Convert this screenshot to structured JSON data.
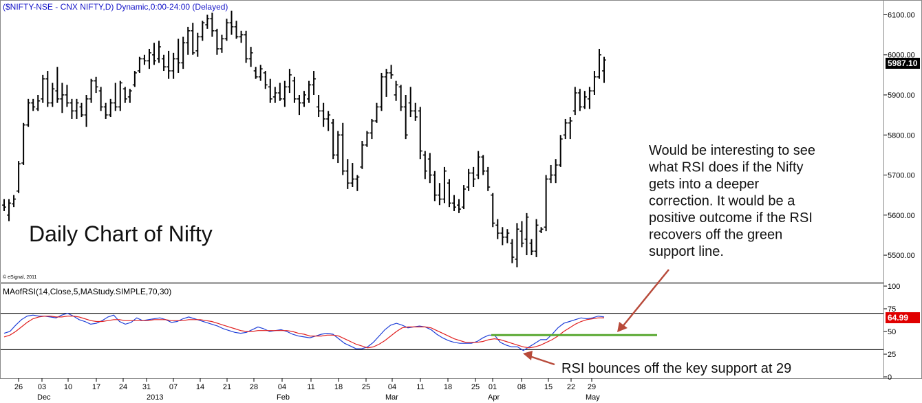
{
  "header": {
    "symbol_title": "($NIFTY-NSE - CNX NIFTY,D) Dynamic,0:00-24:00 (Delayed)",
    "chart_heading": "Daily Chart of Nifty",
    "copyright": "© eSignal, 2011"
  },
  "annotations": {
    "rsi_note_lines": [
      "Would be interesting to see",
      "what RSI does if the Nifty",
      "gets into a deeper",
      "correction. It would be a",
      "positive outcome if the RSI",
      "recovers off the green",
      "support line."
    ],
    "bounce_note": "RSI bounces off the key support at 29"
  },
  "colors": {
    "price_bars": "#000000",
    "rsi_line": "#1f3fd8",
    "ma_line": "#e02020",
    "support_line": "#5aa832",
    "arrow": "#b84a3a",
    "header_text": "#1414c8",
    "last_rsi_badge": "#e00000",
    "last_price_badge": "#000000"
  },
  "chart_data": [
    {
      "type": "ohlc",
      "title": "($NIFTY-NSE - CNX NIFTY,D) Dynamic,0:00-24:00 (Delayed)",
      "ylim": [
        5440,
        6130
      ],
      "y_ticks": [
        "6100.00",
        "6000.00",
        "5900.00",
        "5800.00",
        "5700.00",
        "5600.00",
        "5500.00"
      ],
      "y_tick_values": [
        6100,
        6000,
        5900,
        5800,
        5700,
        5600,
        5500
      ],
      "last_value_label": "5987.10",
      "last_value": 5987.1,
      "x_tick_labels": [
        "26",
        "03",
        "10",
        "17",
        "24",
        "31",
        "07",
        "14",
        "21",
        "28",
        "04",
        "11",
        "18",
        "25",
        "04",
        "11",
        "18",
        "25",
        "01",
        "08",
        "15",
        "22",
        "29"
      ],
      "x_month_labels": [
        "Dec",
        "2013",
        "Feb",
        "Mar",
        "Apr",
        "May"
      ],
      "bars": [
        {
          "o": 5625,
          "h": 5640,
          "l": 5610,
          "c": 5620
        },
        {
          "o": 5600,
          "h": 5640,
          "l": 5585,
          "c": 5630
        },
        {
          "o": 5628,
          "h": 5650,
          "l": 5620,
          "c": 5640
        },
        {
          "o": 5660,
          "h": 5735,
          "l": 5655,
          "c": 5728
        },
        {
          "o": 5730,
          "h": 5830,
          "l": 5725,
          "c": 5825
        },
        {
          "o": 5825,
          "h": 5890,
          "l": 5820,
          "c": 5880
        },
        {
          "o": 5880,
          "h": 5890,
          "l": 5860,
          "c": 5870
        },
        {
          "o": 5865,
          "h": 5900,
          "l": 5860,
          "c": 5885
        },
        {
          "o": 5890,
          "h": 5950,
          "l": 5880,
          "c": 5940
        },
        {
          "o": 5940,
          "h": 5960,
          "l": 5870,
          "c": 5880
        },
        {
          "o": 5880,
          "h": 5930,
          "l": 5870,
          "c": 5915
        },
        {
          "o": 5910,
          "h": 5970,
          "l": 5880,
          "c": 5890
        },
        {
          "o": 5890,
          "h": 5930,
          "l": 5855,
          "c": 5900
        },
        {
          "o": 5900,
          "h": 5925,
          "l": 5870,
          "c": 5880
        },
        {
          "o": 5880,
          "h": 5890,
          "l": 5840,
          "c": 5860
        },
        {
          "o": 5860,
          "h": 5890,
          "l": 5840,
          "c": 5880
        },
        {
          "o": 5870,
          "h": 5880,
          "l": 5845,
          "c": 5850
        },
        {
          "o": 5850,
          "h": 5900,
          "l": 5820,
          "c": 5890
        },
        {
          "o": 5890,
          "h": 5940,
          "l": 5880,
          "c": 5935
        },
        {
          "o": 5935,
          "h": 5945,
          "l": 5905,
          "c": 5920
        },
        {
          "o": 5910,
          "h": 5920,
          "l": 5860,
          "c": 5870
        },
        {
          "o": 5870,
          "h": 5880,
          "l": 5840,
          "c": 5850
        },
        {
          "o": 5850,
          "h": 5890,
          "l": 5845,
          "c": 5880
        },
        {
          "o": 5880,
          "h": 5930,
          "l": 5860,
          "c": 5870
        },
        {
          "o": 5870,
          "h": 5935,
          "l": 5860,
          "c": 5930
        },
        {
          "o": 5915,
          "h": 5920,
          "l": 5880,
          "c": 5890
        },
        {
          "o": 5895,
          "h": 5915,
          "l": 5880,
          "c": 5910
        },
        {
          "o": 5925,
          "h": 5960,
          "l": 5920,
          "c": 5955
        },
        {
          "o": 5960,
          "h": 5995,
          "l": 5955,
          "c": 5990
        },
        {
          "o": 5990,
          "h": 6000,
          "l": 5975,
          "c": 5985
        },
        {
          "o": 5985,
          "h": 6015,
          "l": 5965,
          "c": 6005
        },
        {
          "o": 6000,
          "h": 6030,
          "l": 5975,
          "c": 5985
        },
        {
          "o": 5990,
          "h": 6035,
          "l": 5980,
          "c": 6020
        },
        {
          "o": 5990,
          "h": 6000,
          "l": 5960,
          "c": 5970
        },
        {
          "o": 5970,
          "h": 6010,
          "l": 5940,
          "c": 5960
        },
        {
          "o": 5960,
          "h": 6005,
          "l": 5940,
          "c": 5990
        },
        {
          "o": 5990,
          "h": 6040,
          "l": 5955,
          "c": 5980
        },
        {
          "o": 5980,
          "h": 6045,
          "l": 5965,
          "c": 6030
        },
        {
          "o": 6030,
          "h": 6070,
          "l": 6000,
          "c": 6060
        },
        {
          "o": 6060,
          "h": 6080,
          "l": 6000,
          "c": 6005
        },
        {
          "o": 6010,
          "h": 6055,
          "l": 5995,
          "c": 6045
        },
        {
          "o": 6045,
          "h": 6085,
          "l": 6035,
          "c": 6080
        },
        {
          "o": 6075,
          "h": 6100,
          "l": 6065,
          "c": 6090
        },
        {
          "o": 6090,
          "h": 6105,
          "l": 6045,
          "c": 6060
        },
        {
          "o": 6060,
          "h": 6065,
          "l": 6000,
          "c": 6015
        },
        {
          "o": 6015,
          "h": 6050,
          "l": 6005,
          "c": 6040
        },
        {
          "o": 6040,
          "h": 6090,
          "l": 6035,
          "c": 6080
        },
        {
          "o": 6080,
          "h": 6110,
          "l": 6050,
          "c": 6070
        },
        {
          "o": 6070,
          "h": 6085,
          "l": 6040,
          "c": 6045
        },
        {
          "o": 6045,
          "h": 6060,
          "l": 6030,
          "c": 6050
        },
        {
          "o": 6050,
          "h": 6060,
          "l": 5980,
          "c": 5990
        },
        {
          "o": 5990,
          "h": 6020,
          "l": 5970,
          "c": 6005
        },
        {
          "o": 5960,
          "h": 5970,
          "l": 5940,
          "c": 5945
        },
        {
          "o": 5945,
          "h": 5975,
          "l": 5935,
          "c": 5965
        },
        {
          "o": 5955,
          "h": 5960,
          "l": 5915,
          "c": 5925
        },
        {
          "o": 5920,
          "h": 5940,
          "l": 5880,
          "c": 5890
        },
        {
          "o": 5895,
          "h": 5920,
          "l": 5880,
          "c": 5905
        },
        {
          "o": 5905,
          "h": 5930,
          "l": 5885,
          "c": 5890
        },
        {
          "o": 5890,
          "h": 5935,
          "l": 5870,
          "c": 5920
        },
        {
          "o": 5920,
          "h": 5965,
          "l": 5905,
          "c": 5950
        },
        {
          "o": 5935,
          "h": 5945,
          "l": 5880,
          "c": 5890
        },
        {
          "o": 5890,
          "h": 5900,
          "l": 5850,
          "c": 5880
        },
        {
          "o": 5880,
          "h": 5910,
          "l": 5870,
          "c": 5900
        },
        {
          "o": 5890,
          "h": 5935,
          "l": 5880,
          "c": 5925
        },
        {
          "o": 5925,
          "h": 5960,
          "l": 5900,
          "c": 5940
        },
        {
          "o": 5870,
          "h": 5900,
          "l": 5845,
          "c": 5860
        },
        {
          "o": 5860,
          "h": 5880,
          "l": 5820,
          "c": 5840
        },
        {
          "o": 5840,
          "h": 5860,
          "l": 5810,
          "c": 5850
        },
        {
          "o": 5830,
          "h": 5840,
          "l": 5740,
          "c": 5750
        },
        {
          "o": 5750,
          "h": 5810,
          "l": 5730,
          "c": 5800
        },
        {
          "o": 5800,
          "h": 5830,
          "l": 5700,
          "c": 5710
        },
        {
          "o": 5710,
          "h": 5740,
          "l": 5665,
          "c": 5680
        },
        {
          "o": 5680,
          "h": 5730,
          "l": 5670,
          "c": 5690
        },
        {
          "o": 5690,
          "h": 5700,
          "l": 5660,
          "c": 5695
        },
        {
          "o": 5720,
          "h": 5785,
          "l": 5715,
          "c": 5775
        },
        {
          "o": 5775,
          "h": 5810,
          "l": 5770,
          "c": 5805
        },
        {
          "o": 5805,
          "h": 5840,
          "l": 5790,
          "c": 5835
        },
        {
          "o": 5835,
          "h": 5880,
          "l": 5830,
          "c": 5870
        },
        {
          "o": 5870,
          "h": 5955,
          "l": 5860,
          "c": 5945
        },
        {
          "o": 5945,
          "h": 5965,
          "l": 5895,
          "c": 5955
        },
        {
          "o": 5955,
          "h": 5975,
          "l": 5940,
          "c": 5950
        },
        {
          "o": 5900,
          "h": 5935,
          "l": 5885,
          "c": 5925
        },
        {
          "o": 5920,
          "h": 5925,
          "l": 5860,
          "c": 5870
        },
        {
          "o": 5870,
          "h": 5900,
          "l": 5790,
          "c": 5800
        },
        {
          "o": 5880,
          "h": 5920,
          "l": 5845,
          "c": 5860
        },
        {
          "o": 5860,
          "h": 5880,
          "l": 5835,
          "c": 5845
        },
        {
          "o": 5860,
          "h": 5870,
          "l": 5740,
          "c": 5760
        },
        {
          "o": 5750,
          "h": 5760,
          "l": 5690,
          "c": 5710
        },
        {
          "o": 5740,
          "h": 5755,
          "l": 5680,
          "c": 5700
        },
        {
          "o": 5700,
          "h": 5710,
          "l": 5635,
          "c": 5650
        },
        {
          "o": 5650,
          "h": 5680,
          "l": 5625,
          "c": 5640
        },
        {
          "o": 5640,
          "h": 5720,
          "l": 5630,
          "c": 5710
        },
        {
          "o": 5680,
          "h": 5690,
          "l": 5620,
          "c": 5630
        },
        {
          "o": 5630,
          "h": 5650,
          "l": 5610,
          "c": 5620
        },
        {
          "o": 5625,
          "h": 5640,
          "l": 5605,
          "c": 5615
        },
        {
          "o": 5620,
          "h": 5675,
          "l": 5615,
          "c": 5665
        },
        {
          "o": 5670,
          "h": 5715,
          "l": 5660,
          "c": 5705
        },
        {
          "o": 5705,
          "h": 5720,
          "l": 5670,
          "c": 5690
        },
        {
          "o": 5700,
          "h": 5760,
          "l": 5690,
          "c": 5745
        },
        {
          "o": 5745,
          "h": 5750,
          "l": 5700,
          "c": 5710
        },
        {
          "o": 5710,
          "h": 5720,
          "l": 5660,
          "c": 5670
        },
        {
          "o": 5650,
          "h": 5655,
          "l": 5570,
          "c": 5580
        },
        {
          "o": 5575,
          "h": 5590,
          "l": 5540,
          "c": 5555
        },
        {
          "o": 5555,
          "h": 5570,
          "l": 5525,
          "c": 5545
        },
        {
          "o": 5545,
          "h": 5565,
          "l": 5530,
          "c": 5555
        },
        {
          "o": 5530,
          "h": 5540,
          "l": 5480,
          "c": 5495
        },
        {
          "o": 5490,
          "h": 5580,
          "l": 5470,
          "c": 5565
        },
        {
          "o": 5560,
          "h": 5585,
          "l": 5520,
          "c": 5530
        },
        {
          "o": 5540,
          "h": 5605,
          "l": 5500,
          "c": 5595
        },
        {
          "o": 5530,
          "h": 5540,
          "l": 5500,
          "c": 5510
        },
        {
          "o": 5510,
          "h": 5590,
          "l": 5495,
          "c": 5575
        },
        {
          "o": 5560,
          "h": 5570,
          "l": 5555,
          "c": 5565
        },
        {
          "o": 5570,
          "h": 5700,
          "l": 5560,
          "c": 5690
        },
        {
          "o": 5690,
          "h": 5725,
          "l": 5680,
          "c": 5700
        },
        {
          "o": 5700,
          "h": 5740,
          "l": 5680,
          "c": 5725
        },
        {
          "o": 5725,
          "h": 5800,
          "l": 5720,
          "c": 5790
        },
        {
          "o": 5800,
          "h": 5840,
          "l": 5790,
          "c": 5830
        },
        {
          "o": 5830,
          "h": 5845,
          "l": 5790,
          "c": 5835
        },
        {
          "o": 5860,
          "h": 5920,
          "l": 5850,
          "c": 5905
        },
        {
          "o": 5905,
          "h": 5915,
          "l": 5860,
          "c": 5870
        },
        {
          "o": 5870,
          "h": 5910,
          "l": 5865,
          "c": 5895
        },
        {
          "o": 5890,
          "h": 5920,
          "l": 5865,
          "c": 5910
        },
        {
          "o": 5910,
          "h": 5960,
          "l": 5900,
          "c": 5945
        },
        {
          "o": 5945,
          "h": 6015,
          "l": 5940,
          "c": 6000
        },
        {
          "o": 5960,
          "h": 5995,
          "l": 5930,
          "c": 5987.1
        }
      ]
    },
    {
      "type": "line",
      "title": "MAofRSI(14,Close,5,MAStudy.SIMPLE,70,30)",
      "ylim": [
        0,
        100
      ],
      "y_ticks": [
        "100",
        "75",
        "50",
        "25",
        "0"
      ],
      "y_tick_values": [
        100,
        75,
        50,
        25,
        0
      ],
      "reference_lines": [
        70,
        30
      ],
      "last_value_label": "64.99",
      "last_value": 64.99,
      "support_level": 46,
      "series": [
        {
          "color_key": "rsi_line",
          "values": [
            48,
            50,
            57,
            63,
            67,
            68,
            67,
            67,
            66,
            65,
            68,
            70,
            67,
            63,
            61,
            58,
            59,
            62,
            66,
            68,
            61,
            58,
            60,
            65,
            62,
            63,
            64,
            65,
            63,
            60,
            61,
            64,
            66,
            64,
            62,
            60,
            58,
            56,
            53,
            51,
            49,
            48,
            49,
            52,
            55,
            53,
            50,
            51,
            52,
            50,
            47,
            45,
            44,
            43,
            45,
            47,
            48,
            47,
            42,
            37,
            34,
            31,
            31,
            33,
            38,
            45,
            52,
            57,
            59,
            57,
            54,
            55,
            56,
            55,
            52,
            47,
            43,
            40,
            38,
            37,
            37,
            37,
            39,
            43,
            46,
            46,
            38,
            35,
            33,
            33,
            29,
            33,
            37,
            41,
            41,
            47,
            54,
            59,
            61,
            63,
            65,
            64,
            65,
            67,
            66
          ]
        },
        {
          "color_key": "ma_line",
          "values": [
            44,
            46,
            50,
            55,
            60,
            64,
            66,
            67,
            67,
            66,
            66,
            67,
            67,
            66,
            64,
            62,
            61,
            61,
            62,
            63,
            63,
            62,
            62,
            62,
            62,
            62,
            63,
            63,
            63,
            62,
            62,
            62,
            63,
            63,
            63,
            62,
            61,
            59,
            57,
            55,
            53,
            51,
            50,
            50,
            51,
            51,
            51,
            51,
            51,
            51,
            50,
            48,
            47,
            45,
            45,
            45,
            46,
            46,
            45,
            42,
            39,
            36,
            34,
            32,
            33,
            36,
            40,
            45,
            50,
            54,
            55,
            55,
            55,
            55,
            54,
            51,
            48,
            45,
            42,
            40,
            38,
            38,
            38,
            39,
            41,
            42,
            41,
            39,
            37,
            35,
            33,
            32,
            33,
            35,
            38,
            41,
            45,
            50,
            54,
            58,
            61,
            63,
            64,
            65,
            65
          ]
        }
      ],
      "x_range_note": "same time axis as price panel"
    }
  ]
}
